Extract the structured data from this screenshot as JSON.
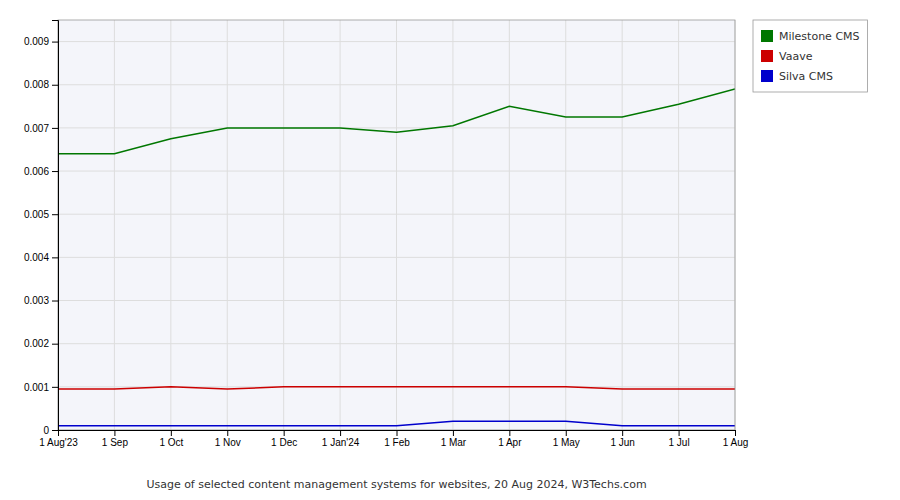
{
  "chart_data": {
    "type": "line",
    "title": "Usage of selected content management systems for websites, 20 Aug 2024, W3Techs.com",
    "categories": [
      "1 Aug'23",
      "1 Sep",
      "1 Oct",
      "1 Nov",
      "1 Dec",
      "1 Jan'24",
      "1 Feb",
      "1 Mar",
      "1 Apr",
      "1 May",
      "1 Jun",
      "1 Jul",
      "1 Aug"
    ],
    "series": [
      {
        "name": "Milestone CMS",
        "color": "#007700",
        "values": [
          0.0064,
          0.0064,
          0.00675,
          0.007,
          0.007,
          0.007,
          0.0069,
          0.00705,
          0.0075,
          0.00725,
          0.00725,
          0.00755,
          0.0079
        ]
      },
      {
        "name": "Vaave",
        "color": "#cc0000",
        "values": [
          0.00095,
          0.00095,
          0.001,
          0.00095,
          0.001,
          0.001,
          0.001,
          0.001,
          0.001,
          0.001,
          0.00095,
          0.00095,
          0.00095
        ]
      },
      {
        "name": "Silva CMS",
        "color": "#0000cc",
        "values": [
          0.0001,
          0.0001,
          0.0001,
          0.0001,
          0.0001,
          0.0001,
          0.0001,
          0.0002,
          0.0002,
          0.0002,
          0.0001,
          0.0001,
          0.0001
        ]
      }
    ],
    "ylim": [
      0,
      0.0095
    ],
    "yticks": [
      0,
      0.001,
      0.002,
      0.003,
      0.004,
      0.005,
      0.006,
      0.007,
      0.008,
      0.009
    ],
    "grid": true,
    "legend": "right"
  }
}
